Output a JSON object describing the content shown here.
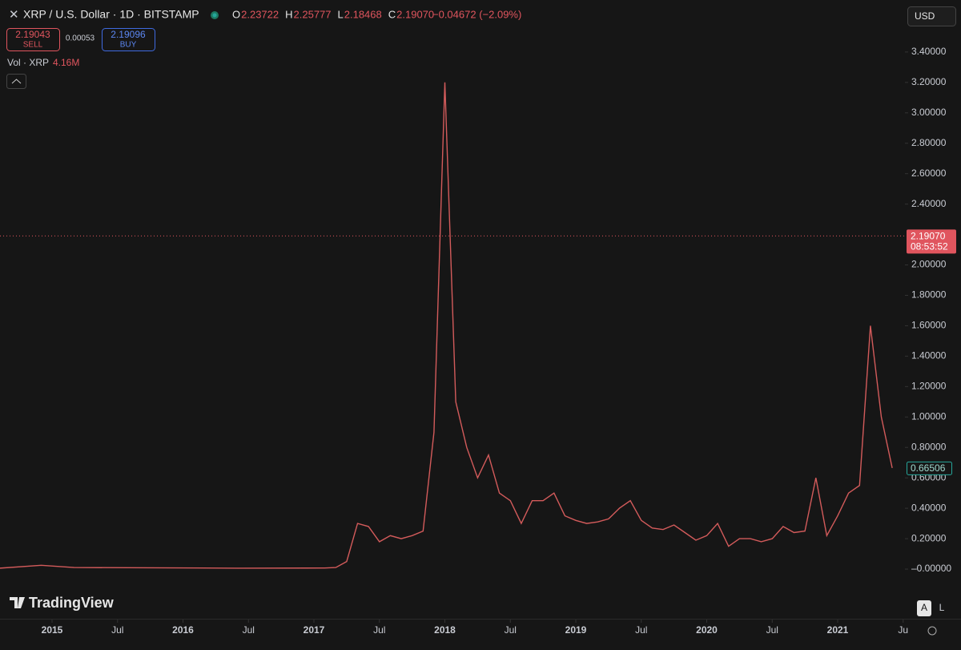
{
  "toolbar": {
    "symbol": "XRP / U.S. Dollar · 1D · BITSTAMP",
    "ohlc": [
      {
        "label": "O",
        "value": "2.23722"
      },
      {
        "label": "H",
        "value": "2.25777"
      },
      {
        "label": "L",
        "value": "2.18468"
      },
      {
        "label": "C",
        "value": "2.19070"
      }
    ],
    "change": "−0.04672 (−2.09%)",
    "sell": {
      "price": "2.19043",
      "label": "SELL"
    },
    "spread": "0.00053",
    "buy": {
      "price": "2.19096",
      "label": "BUY"
    },
    "volume": {
      "label": "Vol · XRP",
      "value": "4.16M"
    },
    "currency": "USD",
    "brand": "TradingView",
    "scale_buttons": [
      "A",
      "L"
    ]
  },
  "chart_data": {
    "type": "line",
    "color": "#d35b5b",
    "grid": false,
    "x": [
      "2014-08",
      "2014-12",
      "2015-03",
      "2016-06",
      "2017-02",
      "2017-03",
      "2017-04",
      "2017-05",
      "2017-06",
      "2017-07",
      "2017-08",
      "2017-09",
      "2017-10",
      "2017-11",
      "2017-12",
      "2018-01",
      "2018-02",
      "2018-03",
      "2018-04",
      "2018-05",
      "2018-06",
      "2018-07",
      "2018-08",
      "2018-09",
      "2018-10",
      "2018-11",
      "2018-12",
      "2019-01",
      "2019-02",
      "2019-03",
      "2019-04",
      "2019-05",
      "2019-06",
      "2019-07",
      "2019-08",
      "2019-09",
      "2019-10",
      "2019-11",
      "2019-12",
      "2020-01",
      "2020-02",
      "2020-03",
      "2020-04",
      "2020-05",
      "2020-06",
      "2020-07",
      "2020-08",
      "2020-09",
      "2020-10",
      "2020-11",
      "2020-12",
      "2021-01",
      "2021-02",
      "2021-03",
      "2021-04",
      "2021-05",
      "2021-06"
    ],
    "values": [
      0.005,
      0.025,
      0.01,
      0.006,
      0.007,
      0.01,
      0.05,
      0.3,
      0.28,
      0.18,
      0.22,
      0.2,
      0.22,
      0.25,
      0.9,
      3.2,
      1.1,
      0.8,
      0.6,
      0.75,
      0.5,
      0.45,
      0.3,
      0.45,
      0.45,
      0.5,
      0.35,
      0.32,
      0.3,
      0.31,
      0.33,
      0.4,
      0.45,
      0.32,
      0.27,
      0.26,
      0.29,
      0.24,
      0.19,
      0.22,
      0.3,
      0.15,
      0.2,
      0.2,
      0.18,
      0.2,
      0.28,
      0.24,
      0.25,
      0.6,
      0.22,
      0.35,
      0.5,
      0.55,
      1.6,
      1.0,
      0.665
    ],
    "ylim": [
      -0.316,
      3.742
    ],
    "yticks": [
      {
        "value": 0,
        "label": "–0.00000"
      },
      {
        "value": 0.2,
        "label": "0.20000"
      },
      {
        "value": 0.4,
        "label": "0.40000"
      },
      {
        "value": 0.6,
        "label": "0.60000"
      },
      {
        "value": 0.8,
        "label": "0.80000"
      },
      {
        "value": 1.0,
        "label": "1.00000"
      },
      {
        "value": 1.2,
        "label": "1.20000"
      },
      {
        "value": 1.4,
        "label": "1.40000"
      },
      {
        "value": 1.6,
        "label": "1.60000"
      },
      {
        "value": 1.8,
        "label": "1.80000"
      },
      {
        "value": 2.0,
        "label": "2.00000"
      },
      {
        "value": 2.4,
        "label": "2.40000"
      },
      {
        "value": 2.6,
        "label": "2.60000"
      },
      {
        "value": 2.8,
        "label": "2.80000"
      },
      {
        "value": 3.0,
        "label": "3.00000"
      },
      {
        "value": 3.2,
        "label": "3.20000"
      },
      {
        "value": 3.4,
        "label": "3.40000"
      }
    ],
    "xticks": [
      {
        "value": "2015-01",
        "label": "2015"
      },
      {
        "value": "2015-07",
        "label": "Jul"
      },
      {
        "value": "2016-01",
        "label": "2016"
      },
      {
        "value": "2016-07",
        "label": "Jul"
      },
      {
        "value": "2017-01",
        "label": "2017"
      },
      {
        "value": "2017-07",
        "label": "Jul"
      },
      {
        "value": "2018-01",
        "label": "2018"
      },
      {
        "value": "2018-07",
        "label": "Jul"
      },
      {
        "value": "2019-01",
        "label": "2019"
      },
      {
        "value": "2019-07",
        "label": "Jul"
      },
      {
        "value": "2020-01",
        "label": "2020"
      },
      {
        "value": "2020-07",
        "label": "Jul"
      },
      {
        "value": "2021-01",
        "label": "2021"
      },
      {
        "value": "2021-07",
        "label": "Ju"
      }
    ],
    "last_price": {
      "value": 2.1907,
      "label": "2.19070",
      "time": "08:53:52"
    },
    "price_tag": {
      "value": 0.66506,
      "label": "0.66506"
    }
  }
}
